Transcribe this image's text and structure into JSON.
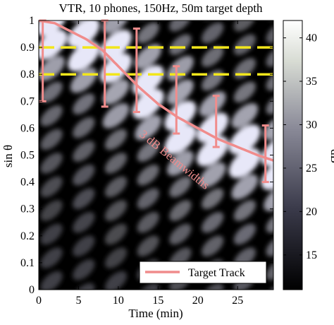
{
  "chart_data": {
    "type": "heatmap",
    "title": "VTR, 10 phones, 150Hz, 50m target depth",
    "xlabel": "Time (min)",
    "ylabel": "sin θ",
    "xlim": [
      0,
      29.5
    ],
    "ylim": [
      0,
      1
    ],
    "x_ticks": [
      0,
      5,
      10,
      15,
      20,
      25
    ],
    "y_ticks": [
      0,
      0.1,
      0.2,
      0.3,
      0.4,
      0.5,
      0.6,
      0.7,
      0.8,
      0.9,
      1
    ],
    "colorbar": {
      "label": "dB",
      "range": [
        11,
        42
      ],
      "ticks": [
        15,
        20,
        25,
        30,
        35,
        40
      ]
    },
    "hlines": [
      {
        "y": 0.9,
        "color": "#f2e61c",
        "style": "dashed"
      },
      {
        "y": 0.8,
        "color": "#f2e61c",
        "style": "dashed"
      }
    ],
    "target_track": {
      "name": "Target Track",
      "color": "#f08c8c",
      "x": [
        0,
        2,
        4,
        6,
        8,
        10,
        12.5,
        15,
        17.5,
        20,
        22.5,
        25,
        27.5,
        29.5
      ],
      "y": [
        1.0,
        0.99,
        0.96,
        0.93,
        0.89,
        0.83,
        0.755,
        0.69,
        0.64,
        0.6,
        0.56,
        0.53,
        0.5,
        0.48
      ]
    },
    "beamwidth_bars": [
      {
        "x": 0.5,
        "low": 0.7,
        "high": 1.0
      },
      {
        "x": 8.3,
        "low": 0.68,
        "high": 1.0
      },
      {
        "x": 12.3,
        "low": 0.66,
        "high": 0.97
      },
      {
        "x": 17.3,
        "low": 0.58,
        "high": 0.83
      },
      {
        "x": 22.3,
        "low": 0.53,
        "high": 0.72
      },
      {
        "x": 28.5,
        "low": 0.4,
        "high": 0.61
      }
    ],
    "annotation": "3 dB Beamwidths",
    "legend": {
      "entries": [
        "Target Track"
      ],
      "placement": "bottom-right"
    }
  },
  "colors": {
    "map_dark": "#000000",
    "map_light": "#ffffff",
    "track": "#f08c8c",
    "dashed_lines": "#f2e61c"
  }
}
